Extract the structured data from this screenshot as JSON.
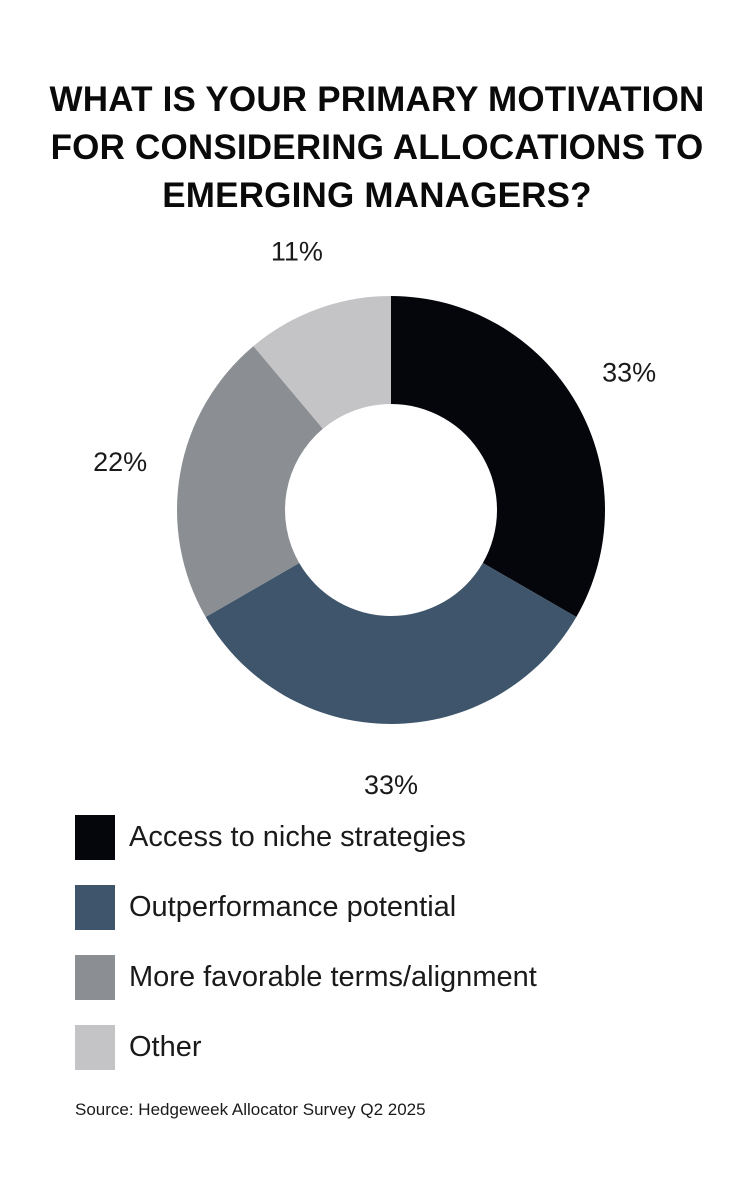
{
  "title_lines": [
    "WHAT IS YOUR PRIMARY MOTIVATION",
    "FOR CONSIDERING ALLOCATIONS TO",
    "EMERGING MANAGERS?"
  ],
  "source": "Source: Hedgeweek Allocator Survey Q2 2025",
  "chart_data": {
    "type": "pie",
    "donut": true,
    "title": "WHAT IS YOUR PRIMARY MOTIVATION FOR CONSIDERING ALLOCATIONS TO EMERGING MANAGERS?",
    "categories": [
      "Access to niche strategies",
      "Outperformance potential",
      "More favorable terms/alignment",
      "Other"
    ],
    "values": [
      33,
      33,
      22,
      11
    ],
    "labels": [
      "33%",
      "33%",
      "22%",
      "11%"
    ],
    "colors": [
      "#05060b",
      "#3e556b",
      "#8b8f93",
      "#c4c3c6"
    ],
    "legend": "bottom-left"
  }
}
